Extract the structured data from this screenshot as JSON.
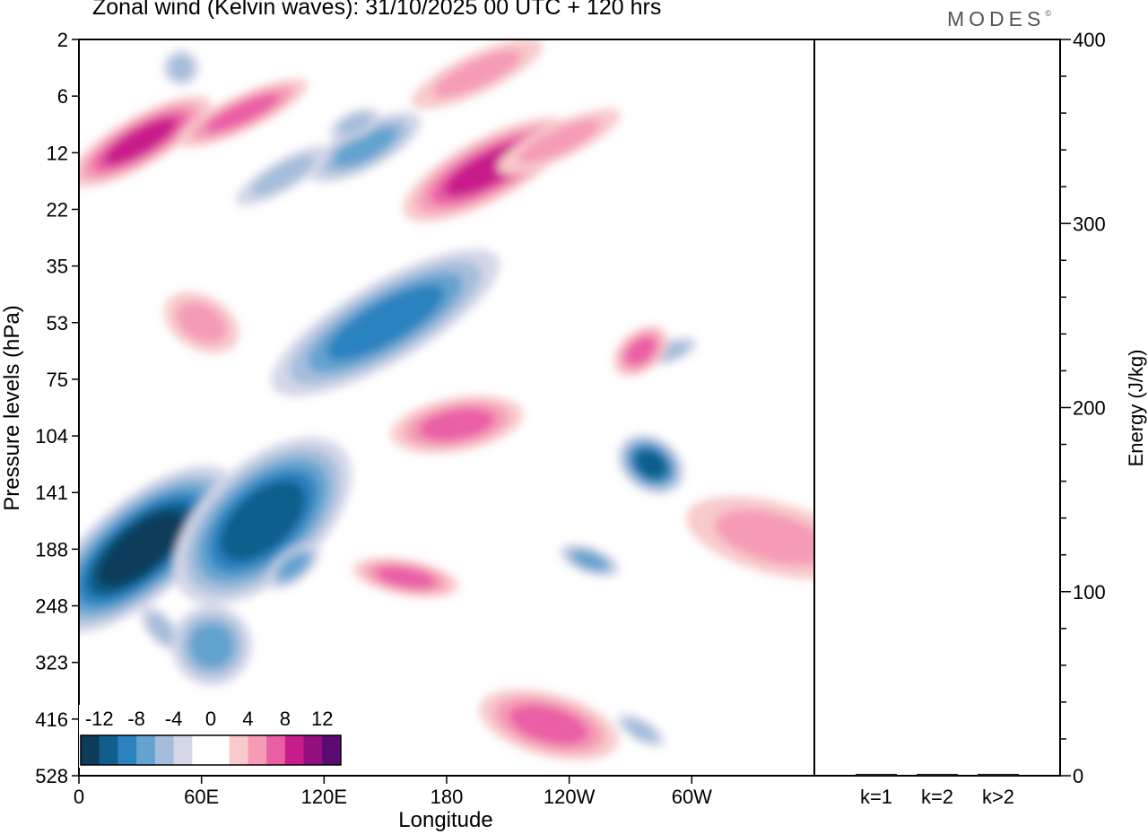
{
  "title": "Zonal wind (Kelvin waves):  31/10/2025  00 UTC  + 120 hrs",
  "logo": {
    "text": "MODES",
    "mark": "©"
  },
  "colors": {
    "neg": [
      "#0d3c5a",
      "#105e8c",
      "#2a82bf",
      "#64a3cf",
      "#a4bddb",
      "#d4d7e8"
    ],
    "zero": "#ffffff",
    "pos": [
      "#f8cacb",
      "#f59bb6",
      "#ea5ea6",
      "#c81c8b",
      "#920f7f",
      "#5a0a70"
    ]
  },
  "chart_data": [
    {
      "type": "heatmap",
      "subtype": "filled-contour",
      "xlabel": "Longitude",
      "ylabel": "Pressure levels (hPa)",
      "xlim": [
        0,
        360
      ],
      "x_ticks": [
        {
          "lon": 0,
          "label": "0"
        },
        {
          "lon": 60,
          "label": "60E"
        },
        {
          "lon": 120,
          "label": "120E"
        },
        {
          "lon": 180,
          "label": "180"
        },
        {
          "lon": 240,
          "label": "120W"
        },
        {
          "lon": 300,
          "label": "60W"
        }
      ],
      "y_levels": [
        "2",
        "6",
        "12",
        "22",
        "35",
        "53",
        "75",
        "104",
        "141",
        "188",
        "248",
        "323",
        "416",
        "528"
      ],
      "colorbar_labels": [
        "-12",
        "-8",
        "-4",
        "0",
        "4",
        "8",
        "12"
      ],
      "features": [
        {
          "sign": -1,
          "max_level": 5,
          "lon": 30,
          "level": 9.0
        },
        {
          "sign": -1,
          "max_level": 4,
          "lon": 90,
          "level": 8.5
        },
        {
          "sign": -1,
          "max_level": 2,
          "lon": 105,
          "level": 9.3
        },
        {
          "sign": -1,
          "max_level": 2,
          "lon": 65,
          "level": 10.7
        },
        {
          "sign": -1,
          "max_level": 1,
          "lon": 40,
          "level": 10.4
        },
        {
          "sign": -1,
          "max_level": 3,
          "lon": 150,
          "level": 5.0
        },
        {
          "sign": -1,
          "max_level": 2,
          "lon": 140,
          "level": 1.9
        },
        {
          "sign": -1,
          "max_level": 1,
          "lon": 135,
          "level": 1.5
        },
        {
          "sign": -1,
          "max_level": 1,
          "lon": 100,
          "level": 2.4
        },
        {
          "sign": -1,
          "max_level": 1,
          "lon": 50,
          "level": 0.5
        },
        {
          "sign": -1,
          "max_level": 1,
          "lon": 290,
          "level": 5.5
        },
        {
          "sign": -1,
          "max_level": 4,
          "lon": 280,
          "level": 7.5
        },
        {
          "sign": -1,
          "max_level": 2,
          "lon": 250,
          "level": 9.2
        },
        {
          "sign": -1,
          "max_level": 1,
          "lon": 275,
          "level": 12.2
        },
        {
          "sign": 1,
          "max_level": 2,
          "lon": 185,
          "level": 6.8
        },
        {
          "sign": 1,
          "max_level": 3,
          "lon": 200,
          "level": 2.3
        },
        {
          "sign": 1,
          "max_level": 2,
          "lon": 160,
          "level": 9.5
        },
        {
          "sign": 1,
          "max_level": 2,
          "lon": 230,
          "level": 12.1
        },
        {
          "sign": 1,
          "max_level": 2,
          "lon": 275,
          "level": 5.5
        },
        {
          "sign": 1,
          "max_level": 1,
          "lon": 195,
          "level": 0.6
        },
        {
          "sign": 1,
          "max_level": 3,
          "lon": 30,
          "level": 1.8
        },
        {
          "sign": 1,
          "max_level": 2,
          "lon": 80,
          "level": 1.3
        },
        {
          "sign": 1,
          "max_level": 1,
          "lon": 235,
          "level": 1.8
        },
        {
          "sign": 1,
          "max_level": 1,
          "lon": 60,
          "level": 5.0
        },
        {
          "sign": 1,
          "max_level": 1,
          "lon": 340,
          "level": 8.8
        }
      ]
    },
    {
      "type": "bar",
      "categories": [
        "k=1",
        "k=2",
        "k>2"
      ],
      "values": [
        1,
        1,
        1
      ],
      "ylabel": "Energy (J/kg)",
      "ylim": [
        0,
        400
      ],
      "y_ticks": [
        "0",
        "100",
        "200",
        "300",
        "400"
      ]
    }
  ]
}
